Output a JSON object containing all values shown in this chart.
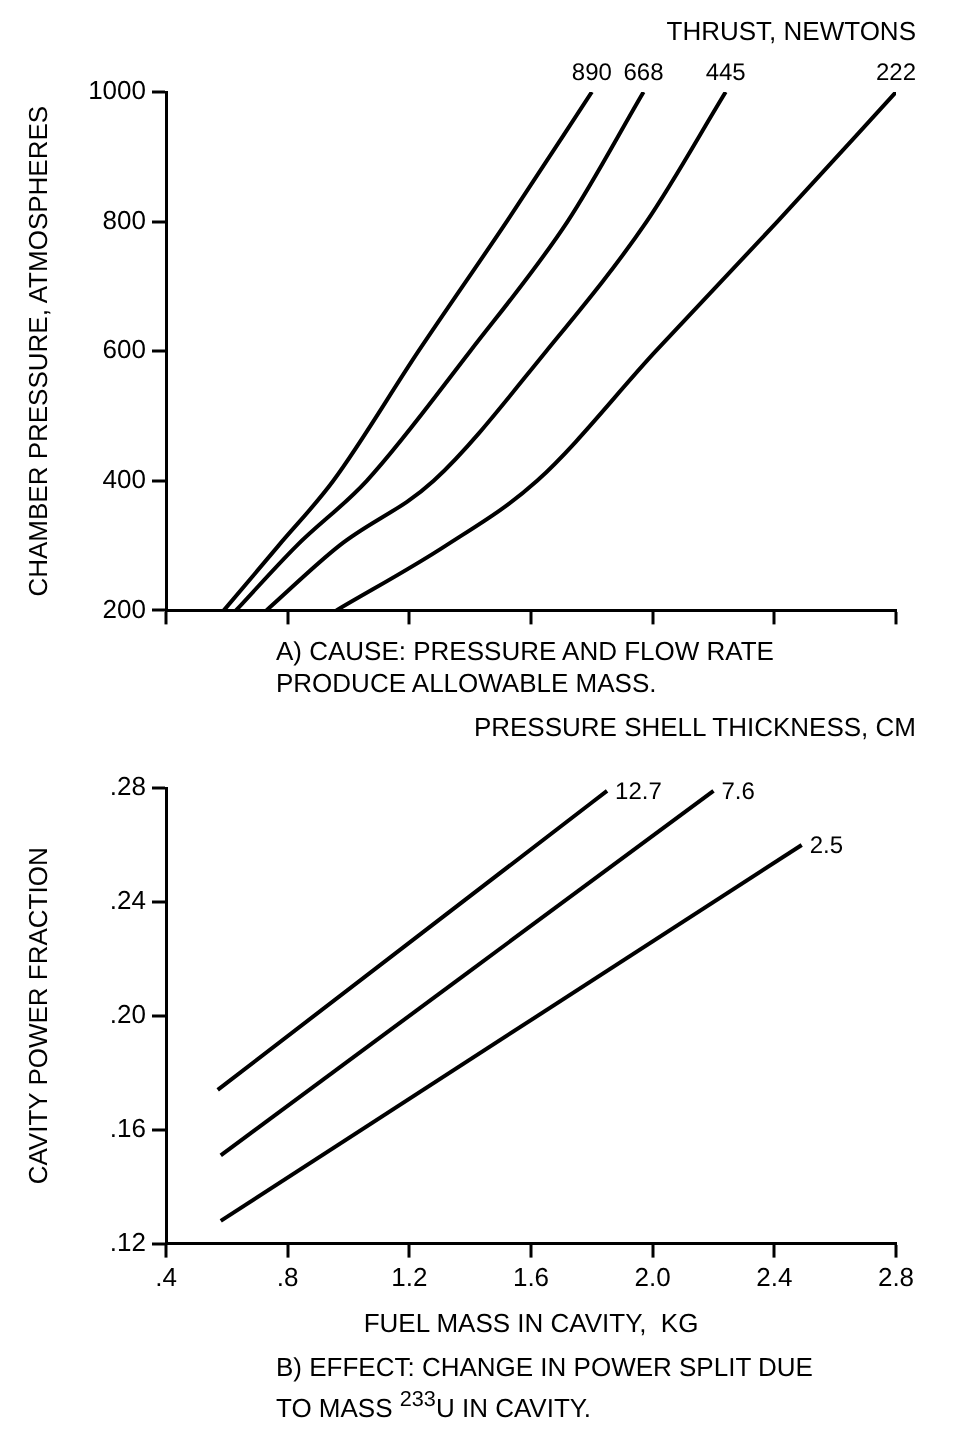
{
  "chart_data": [
    {
      "type": "line",
      "legend_title": "THRUST, NEWTONS",
      "ylabel": "CHAMBER PRESSURE, ATMOSPHERES",
      "annotations": [
        "A) CAUSE:  PRESSURE AND FLOW RATE PRODUCE ALLOWABLE MASS."
      ],
      "xlim": [
        0.4,
        2.8
      ],
      "xticks": [
        0.4,
        0.8,
        1.2,
        1.6,
        2.0,
        2.4,
        2.8
      ],
      "ylim": [
        200,
        1000
      ],
      "yticks": [
        200,
        400,
        600,
        800,
        1000
      ],
      "tick_labels": "y",
      "grid": false,
      "legend": false,
      "marker": "none",
      "line_style": "solid",
      "series": [
        {
          "name": "890",
          "color": "#000000",
          "x": [
            0.59,
            0.77,
            0.95,
            1.23,
            1.52,
            1.8
          ],
          "values": [
            200,
            300,
            400,
            600,
            800,
            1000
          ]
        },
        {
          "name": "668",
          "color": "#000000",
          "x": [
            0.63,
            0.83,
            1.06,
            1.4,
            1.72,
            1.97
          ],
          "values": [
            200,
            300,
            400,
            600,
            800,
            1000
          ]
        },
        {
          "name": "445",
          "color": "#000000",
          "x": [
            0.73,
            0.97,
            1.28,
            1.65,
            1.98,
            2.24
          ],
          "values": [
            200,
            300,
            400,
            600,
            800,
            1000
          ]
        },
        {
          "name": "222",
          "color": "#000000",
          "x": [
            0.96,
            1.32,
            1.62,
            2.01,
            2.41,
            2.8
          ],
          "values": [
            200,
            300,
            400,
            600,
            800,
            1000
          ]
        }
      ]
    },
    {
      "type": "line",
      "legend_title": "PRESSURE SHELL THICKNESS, CM",
      "xlabel": "FUEL MASS IN CAVITY,  KG",
      "ylabel": "CAVITY POWER FRACTION",
      "annotations": [
        "B) EFFECT:  CHANGE IN POWER SPLIT DUE TO MASS $^{233}$U IN CAVITY."
      ],
      "xlim": [
        0.4,
        2.8
      ],
      "xticks": [
        {
          "value": 0.4,
          "label": ".4"
        },
        {
          "value": 0.8,
          "label": ".8"
        },
        {
          "value": 1.2,
          "label": "1.2"
        },
        {
          "value": 1.6,
          "label": "1.6"
        },
        {
          "value": 2.0,
          "label": "2.0"
        },
        {
          "value": 2.4,
          "label": "2.4"
        },
        {
          "value": 2.8,
          "label": "2.8"
        }
      ],
      "ylim": [
        0.12,
        0.28
      ],
      "yticks": [
        {
          "value": 0.12,
          "label": ".12"
        },
        {
          "value": 0.16,
          "label": ".16"
        },
        {
          "value": 0.2,
          "label": ".20"
        },
        {
          "value": 0.24,
          "label": ".24"
        },
        {
          "value": 0.28,
          "label": ".28"
        }
      ],
      "grid": false,
      "legend": false,
      "marker": "none",
      "line_style": "solid",
      "series": [
        {
          "name": "12.7",
          "color": "#000000",
          "x": [
            0.57,
            1.85
          ],
          "values": [
            0.174,
            0.279
          ]
        },
        {
          "name": "7.6",
          "color": "#000000",
          "x": [
            0.58,
            2.2
          ],
          "values": [
            0.151,
            0.279
          ]
        },
        {
          "name": "2.5",
          "color": "#000000",
          "x": [
            0.58,
            2.49
          ],
          "values": [
            0.128,
            0.26
          ]
        }
      ]
    }
  ]
}
